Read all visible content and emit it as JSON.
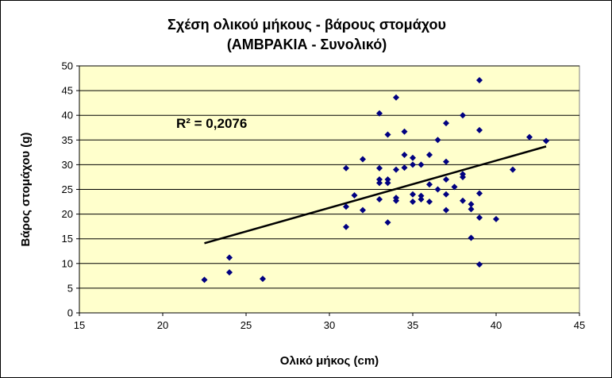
{
  "chart_data": {
    "type": "scatter",
    "title": "Σχέση ολικού  μήκους - βάρους στομάχου",
    "subtitle": "(ΑΜΒΡΑΚΙΑ  - Συνολικό)",
    "xlabel": "Ολικό μήκος (cm)",
    "ylabel": "Βάρος στομάχου (g)",
    "xlim": [
      15,
      45
    ],
    "ylim": [
      0,
      50
    ],
    "x_ticks": [
      15,
      20,
      25,
      30,
      35,
      40,
      45
    ],
    "y_ticks": [
      0,
      5,
      10,
      15,
      20,
      25,
      30,
      35,
      40,
      45,
      50
    ],
    "grid": "horizontal",
    "legend": "none",
    "annotation": "R² = 0,2076",
    "colors": {
      "plot_area": "#ffffcc",
      "marker": "#000080",
      "trendline": "#000000"
    },
    "trendline": {
      "x": [
        22.5,
        43
      ],
      "y": [
        14.1,
        33.7
      ]
    },
    "points": [
      [
        22.5,
        6.7
      ],
      [
        24,
        8.2
      ],
      [
        24,
        11.2
      ],
      [
        26,
        6.9
      ],
      [
        31,
        29.3
      ],
      [
        31,
        21.5
      ],
      [
        31,
        17.4
      ],
      [
        31.5,
        23.8
      ],
      [
        32,
        31.1
      ],
      [
        32,
        20.8
      ],
      [
        33,
        40.4
      ],
      [
        33,
        29.3
      ],
      [
        33,
        27
      ],
      [
        33,
        26.3
      ],
      [
        33,
        23
      ],
      [
        33.5,
        36.1
      ],
      [
        33.5,
        27
      ],
      [
        33.5,
        26.3
      ],
      [
        33.5,
        18.3
      ],
      [
        34,
        43.6
      ],
      [
        34,
        29
      ],
      [
        34,
        23.3
      ],
      [
        34,
        22.7
      ],
      [
        34.5,
        36.7
      ],
      [
        34.5,
        32
      ],
      [
        34.5,
        29.4
      ],
      [
        35,
        31.4
      ],
      [
        35,
        30
      ],
      [
        35,
        24
      ],
      [
        35,
        22.5
      ],
      [
        35.5,
        30
      ],
      [
        35.5,
        23.7
      ],
      [
        35.5,
        23
      ],
      [
        36,
        32
      ],
      [
        36,
        26
      ],
      [
        36,
        22.5
      ],
      [
        36.5,
        35
      ],
      [
        36.5,
        25
      ],
      [
        37,
        38.4
      ],
      [
        37,
        30.6
      ],
      [
        37,
        27
      ],
      [
        37,
        24
      ],
      [
        37,
        20.8
      ],
      [
        37.5,
        25.5
      ],
      [
        38,
        40
      ],
      [
        38,
        28.1
      ],
      [
        38,
        27.5
      ],
      [
        38,
        22.7
      ],
      [
        38.5,
        22
      ],
      [
        38.5,
        21
      ],
      [
        38.5,
        15.2
      ],
      [
        39,
        47.1
      ],
      [
        39,
        37
      ],
      [
        39,
        24.2
      ],
      [
        39,
        19.3
      ],
      [
        39,
        9.8
      ],
      [
        40,
        19
      ],
      [
        41,
        29
      ],
      [
        42,
        35.6
      ],
      [
        43,
        34.8
      ]
    ]
  }
}
